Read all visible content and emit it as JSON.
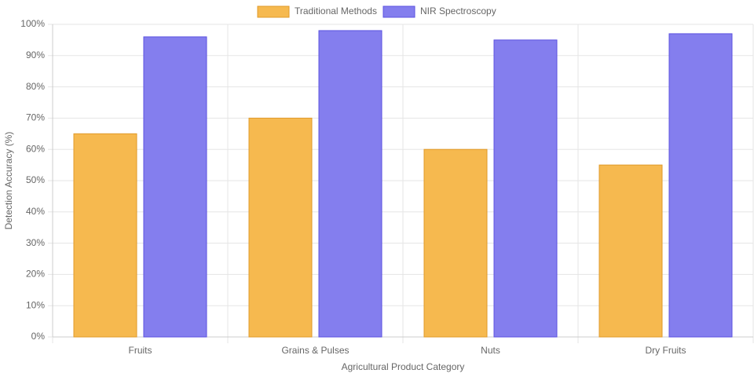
{
  "chart_data": {
    "type": "bar",
    "x_label": "Agricultural Product Category",
    "y_label": "Detection Accuracy (%)",
    "categories": [
      "Fruits",
      "Grains & Pulses",
      "Nuts",
      "Dry Fruits"
    ],
    "series": [
      {
        "name": "Traditional Methods",
        "color": "#f6b94f",
        "values": [
          65,
          70,
          60,
          55
        ]
      },
      {
        "name": "NIR Spectroscopy",
        "color": "#847eee",
        "values": [
          96,
          98,
          95,
          97
        ]
      }
    ],
    "ylim": [
      0,
      100
    ],
    "yticks": [
      {
        "value": 0,
        "label": "0%"
      },
      {
        "value": 10,
        "label": "10%"
      },
      {
        "value": 20,
        "label": "20%"
      },
      {
        "value": 30,
        "label": "30%"
      },
      {
        "value": 40,
        "label": "40%"
      },
      {
        "value": 50,
        "label": "50%"
      },
      {
        "value": 60,
        "label": "60%"
      },
      {
        "value": 70,
        "label": "70%"
      },
      {
        "value": 80,
        "label": "80%"
      },
      {
        "value": 90,
        "label": "90%"
      },
      {
        "value": 100,
        "label": "100%"
      }
    ],
    "grid": true,
    "legend": "top"
  }
}
